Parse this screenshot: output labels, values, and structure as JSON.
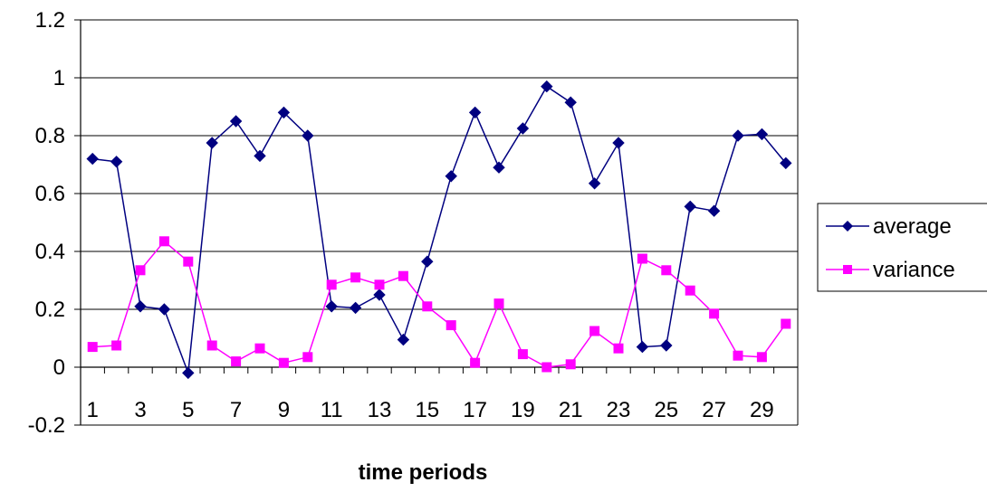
{
  "chart_data": {
    "type": "line",
    "xlabel": "time periods",
    "ylabel": "",
    "ylim": [
      -0.2,
      1.2
    ],
    "yticks": [
      "1.2",
      "1",
      "0.8",
      "0.6",
      "0.4",
      "0.2",
      "0",
      "-0.2"
    ],
    "ytick_values": [
      1.2,
      1.0,
      0.8,
      0.6,
      0.4,
      0.2,
      0.0,
      -0.2
    ],
    "x": [
      1,
      2,
      3,
      4,
      5,
      6,
      7,
      8,
      9,
      10,
      11,
      12,
      13,
      14,
      15,
      16,
      17,
      18,
      19,
      20,
      21,
      22,
      23,
      24,
      25,
      26,
      27,
      28,
      29,
      30
    ],
    "xticks": [
      "1",
      "3",
      "5",
      "7",
      "9",
      "11",
      "13",
      "15",
      "17",
      "19",
      "21",
      "23",
      "25",
      "27",
      "29"
    ],
    "xtick_values": [
      1,
      3,
      5,
      7,
      9,
      11,
      13,
      15,
      17,
      19,
      21,
      23,
      25,
      27,
      29
    ],
    "grid": true,
    "legend_position": "right",
    "series": [
      {
        "name": "average",
        "color": "#000080",
        "marker": "diamond",
        "values": [
          0.72,
          0.71,
          0.21,
          0.2,
          -0.02,
          0.775,
          0.85,
          0.73,
          0.88,
          0.8,
          0.21,
          0.205,
          0.25,
          0.095,
          0.365,
          0.66,
          0.88,
          0.69,
          0.825,
          0.97,
          0.915,
          0.635,
          0.775,
          0.07,
          0.075,
          0.555,
          0.54,
          0.8,
          0.805,
          0.705
        ]
      },
      {
        "name": "variance",
        "color": "#FF00FF",
        "marker": "square",
        "values": [
          0.07,
          0.075,
          0.335,
          0.435,
          0.365,
          0.075,
          0.02,
          0.065,
          0.015,
          0.035,
          0.285,
          0.31,
          0.285,
          0.315,
          0.21,
          0.145,
          0.015,
          0.22,
          0.045,
          0.0,
          0.01,
          0.125,
          0.065,
          0.375,
          0.335,
          0.265,
          0.185,
          0.04,
          0.035,
          0.15
        ]
      }
    ]
  }
}
